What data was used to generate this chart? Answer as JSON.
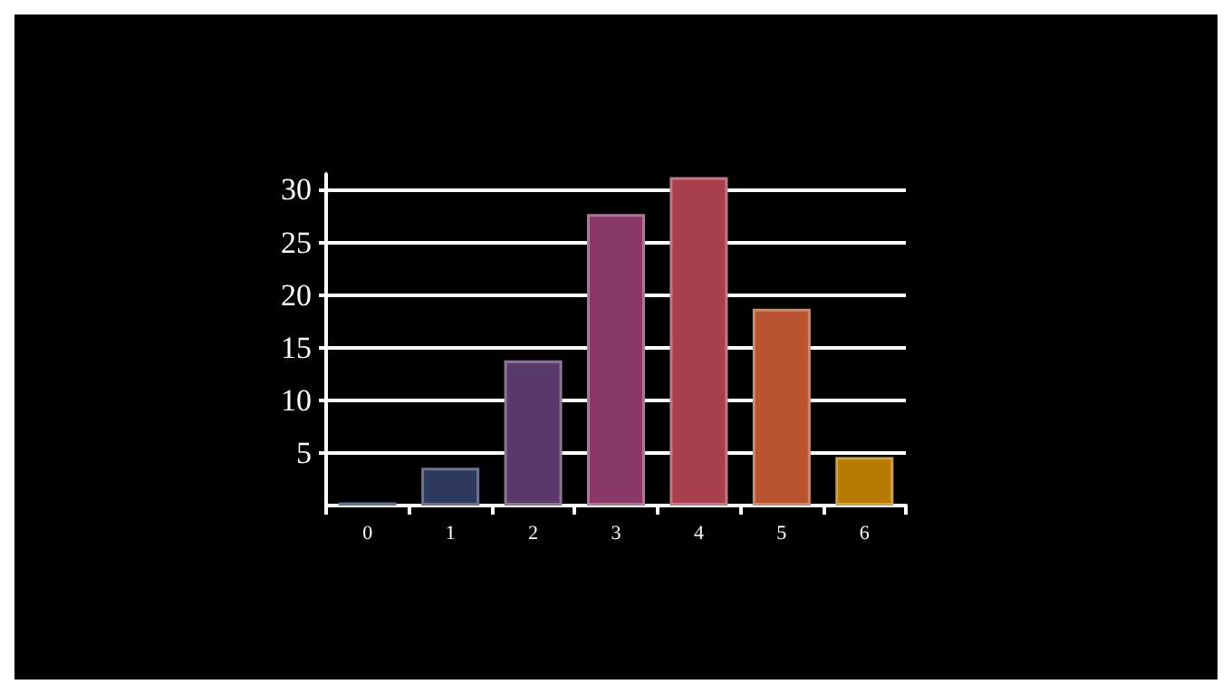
{
  "chart_data": {
    "type": "bar",
    "categories": [
      "0",
      "1",
      "2",
      "3",
      "4",
      "5",
      "6"
    ],
    "values": [
      0.3,
      3.6,
      13.8,
      27.7,
      31.2,
      18.7,
      4.6
    ],
    "colors": [
      "#1e3a6e",
      "#2e3a5e",
      "#5a3a6a",
      "#8a3a6a",
      "#a8404f",
      "#b85530",
      "#b87a00"
    ],
    "ylim": [
      0,
      31.5
    ],
    "yticks": [
      5,
      10,
      15,
      20,
      25,
      30
    ],
    "grid": "y"
  }
}
